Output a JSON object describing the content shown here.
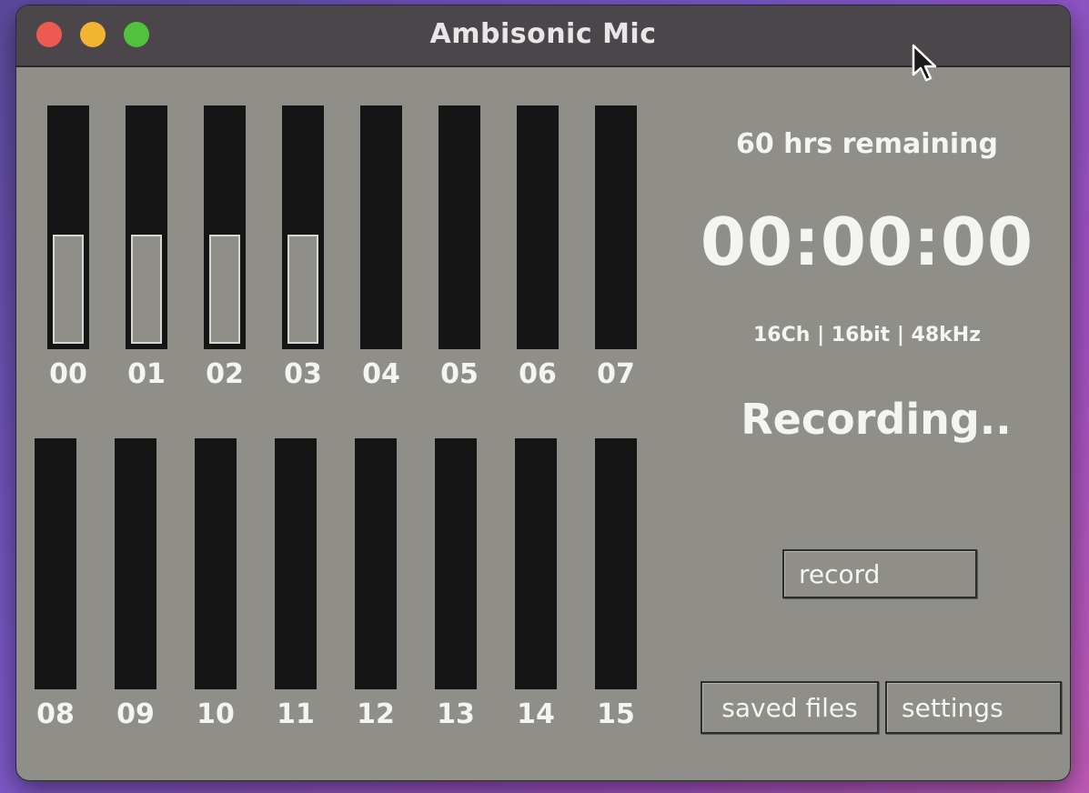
{
  "window": {
    "title": "Ambisonic Mic"
  },
  "channels_top": [
    {
      "id": "00",
      "level": 0.47
    },
    {
      "id": "01",
      "level": 0.47
    },
    {
      "id": "02",
      "level": 0.47
    },
    {
      "id": "03",
      "level": 0.47
    },
    {
      "id": "04",
      "level": 0
    },
    {
      "id": "05",
      "level": 0
    },
    {
      "id": "06",
      "level": 0
    },
    {
      "id": "07",
      "level": 0
    }
  ],
  "channels_bottom": [
    {
      "id": "08",
      "level": 0
    },
    {
      "id": "09",
      "level": 0
    },
    {
      "id": "10",
      "level": 0
    },
    {
      "id": "11",
      "level": 0
    },
    {
      "id": "12",
      "level": 0
    },
    {
      "id": "13",
      "level": 0
    },
    {
      "id": "14",
      "level": 0
    },
    {
      "id": "15",
      "level": 0
    }
  ],
  "info": {
    "remaining": "60 hrs remaining",
    "timer": "00:00:00",
    "format": "16Ch | 16bit | 48kHz",
    "status": "Recording.."
  },
  "buttons": {
    "record": "record",
    "saved_files": "saved files",
    "settings": "settings"
  },
  "colors": {
    "window_bg": "#8f8e88",
    "titlebar": "#4b4649",
    "meter_bg": "#151515",
    "text": "#f4f4f0"
  }
}
